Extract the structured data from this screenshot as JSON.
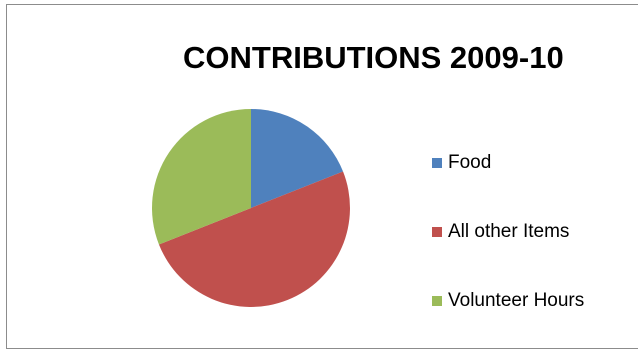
{
  "chart_data": {
    "type": "pie",
    "title": "CONTRIBUTIONS 2009-10",
    "categories": [
      "Food",
      "All other Items",
      "Volunteer Hours"
    ],
    "values": [
      19,
      50,
      31
    ],
    "colors": [
      "#4f81bd",
      "#c0504d",
      "#9bbb59"
    ],
    "start_angle_deg": 0,
    "direction": "clockwise",
    "legend_position": "right"
  }
}
